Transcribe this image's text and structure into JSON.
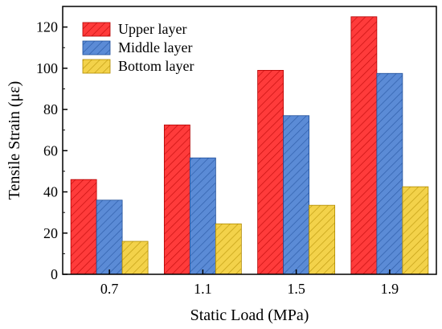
{
  "chart_data": {
    "type": "bar",
    "title": "",
    "xlabel": "Static Load (MPa)",
    "ylabel": "Tensile Strain (με)",
    "categories": [
      "0.7",
      "1.1",
      "1.5",
      "1.9"
    ],
    "ylim": [
      0,
      130
    ],
    "yticks": [
      0,
      20,
      40,
      60,
      80,
      100,
      120
    ],
    "series": [
      {
        "name": "Upper layer",
        "values": [
          46,
          72.5,
          99,
          125
        ],
        "color": "#ff3b3b",
        "hatch_color": "#b30000"
      },
      {
        "name": "Middle layer",
        "values": [
          36,
          56.5,
          77,
          97.5
        ],
        "color": "#5b8bd6",
        "hatch_color": "#1f4f9a"
      },
      {
        "name": "Bottom layer",
        "values": [
          16,
          24.5,
          33.5,
          42.5
        ],
        "color": "#f3d24a",
        "hatch_color": "#b08a00"
      }
    ],
    "legend_position": "top-left",
    "grid": false
  }
}
